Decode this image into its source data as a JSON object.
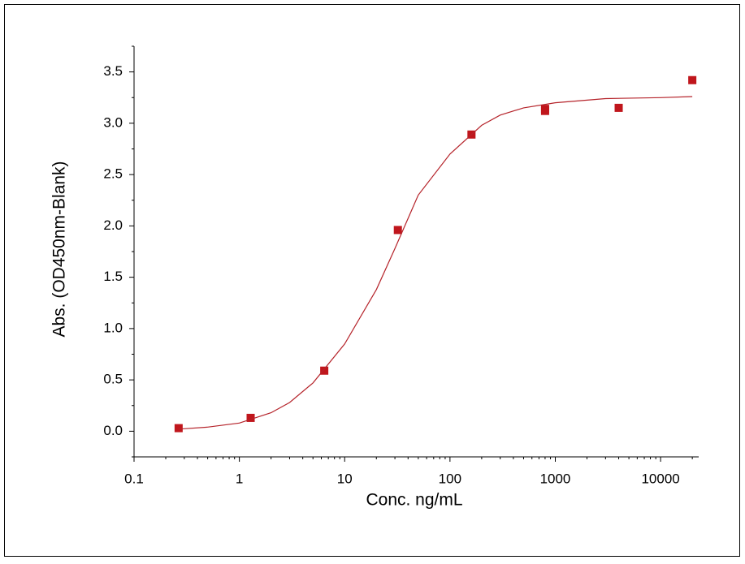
{
  "chart_data": {
    "type": "scatter",
    "xlabel": "Conc. ng/mL",
    "ylabel": "Abs. (OD450nm-Blank)",
    "xscale": "log",
    "xlim": [
      0.1,
      23000
    ],
    "ylim": [
      -0.25,
      3.75
    ],
    "xticks": [
      0.1,
      1,
      10,
      100,
      1000,
      10000
    ],
    "yticks": [
      {
        "value": 0,
        "label": "0.0"
      },
      0.5,
      {
        "value": 1,
        "label": "1.0"
      },
      1.5,
      {
        "value": 2,
        "label": "2.0"
      },
      2.5,
      {
        "value": 3,
        "label": "3.0"
      },
      3.5
    ],
    "series": [
      {
        "color": "#c0161c",
        "marker": "square",
        "x": [
          0.265,
          1.28,
          6.4,
          32,
          160,
          800,
          800,
          4000,
          20000
        ],
        "values": [
          0.03,
          0.13,
          0.59,
          1.96,
          2.89,
          3.12,
          3.14,
          3.15,
          3.42
        ]
      },
      {
        "color": "#b5232a",
        "marker": "line",
        "x": [
          0.265,
          0.5,
          1,
          2,
          3,
          5,
          10,
          20,
          30,
          50,
          100,
          200,
          300,
          500,
          1000,
          3000,
          10000,
          20000
        ],
        "values": [
          0.02,
          0.04,
          0.08,
          0.18,
          0.28,
          0.47,
          0.85,
          1.38,
          1.78,
          2.3,
          2.7,
          2.98,
          3.08,
          3.15,
          3.2,
          3.24,
          3.25,
          3.26
        ]
      }
    ]
  }
}
